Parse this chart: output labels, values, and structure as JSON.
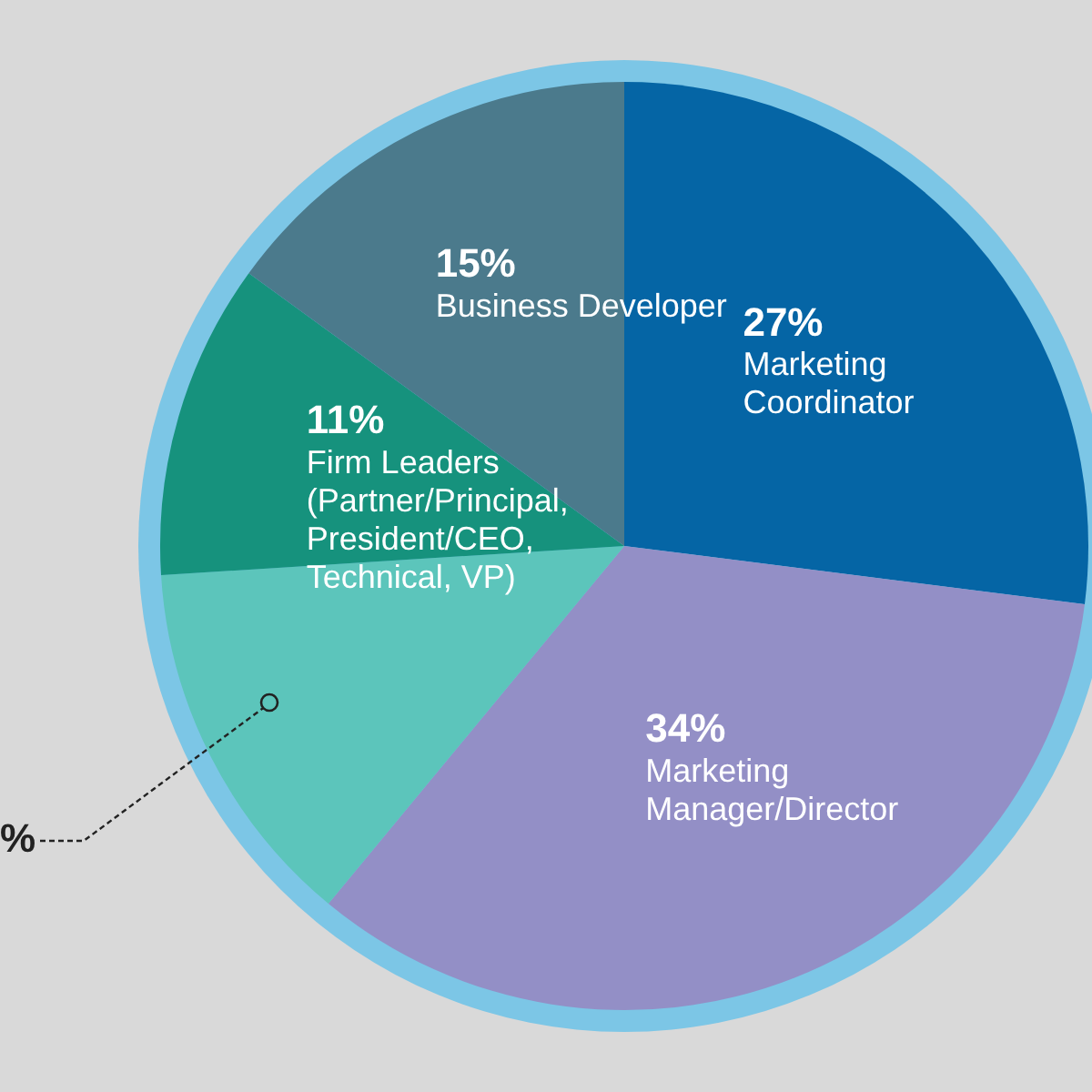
{
  "chart_data": {
    "type": "pie",
    "categories": [
      "Marketing Coordinator",
      "Marketing Manager/Director",
      null,
      "Firm Leaders (Partner/Principal, President/CEO, Technical, VP)",
      "Business Developer"
    ],
    "values": [
      27,
      34,
      13,
      11,
      15
    ],
    "colors": [
      "#0565a5",
      "#938fc6",
      "#5cc5bb",
      "#16927d",
      "#4b7a8c"
    ],
    "value_labels": [
      "27%",
      "34%",
      null,
      "11%",
      "15%"
    ],
    "annotations": [
      "%"
    ],
    "legend": false
  }
}
